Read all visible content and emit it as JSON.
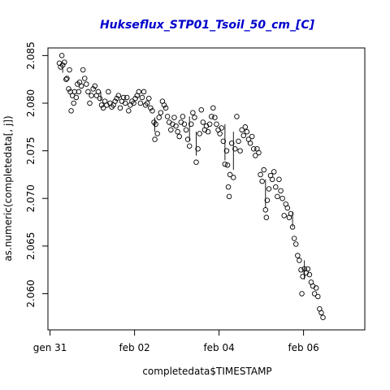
{
  "chart_data": {
    "type": "scatter",
    "title": "Hukseflux_STP01_Tsoil_50_cm_[C]",
    "xlabel": "completedata$TIMESTAMP",
    "ylabel": "as.numeric(completedata[, j])",
    "x_unit": "days",
    "xlim": [
      -0.05,
      7.45
    ],
    "ylim": [
      2.0562,
      2.0858
    ],
    "x_ticks": [
      {
        "value": 0,
        "label": "gen 31"
      },
      {
        "value": 2,
        "label": "feb 02"
      },
      {
        "value": 4,
        "label": "feb 04"
      },
      {
        "value": 6,
        "label": "feb 06"
      }
    ],
    "y_ticks": [
      {
        "value": 2.06,
        "label": "2.060"
      },
      {
        "value": 2.065,
        "label": "2.065"
      },
      {
        "value": 2.07,
        "label": "2.070"
      },
      {
        "value": 2.075,
        "label": "2.075"
      },
      {
        "value": 2.08,
        "label": "2.080"
      },
      {
        "value": 2.085,
        "label": "2.085"
      }
    ],
    "grid": false,
    "points": [
      [
        0.22,
        2.0842
      ],
      [
        0.25,
        2.0838
      ],
      [
        0.28,
        2.085
      ],
      [
        0.3,
        2.084
      ],
      [
        0.34,
        2.0843
      ],
      [
        0.38,
        2.0825
      ],
      [
        0.4,
        2.0826
      ],
      [
        0.44,
        2.0815
      ],
      [
        0.46,
        2.0835
      ],
      [
        0.48,
        2.0812
      ],
      [
        0.5,
        2.0792
      ],
      [
        0.53,
        2.0808
      ],
      [
        0.56,
        2.08
      ],
      [
        0.58,
        2.0812
      ],
      [
        0.62,
        2.0806
      ],
      [
        0.65,
        2.082
      ],
      [
        0.68,
        2.0812
      ],
      [
        0.7,
        2.0822
      ],
      [
        0.74,
        2.0818
      ],
      [
        0.78,
        2.0835
      ],
      [
        0.82,
        2.0826
      ],
      [
        0.86,
        2.082
      ],
      [
        0.9,
        2.0812
      ],
      [
        0.94,
        2.08
      ],
      [
        0.98,
        2.0808
      ],
      [
        1.02,
        2.0815
      ],
      [
        1.06,
        2.0818
      ],
      [
        1.1,
        2.0808
      ],
      [
        1.14,
        2.0812
      ],
      [
        1.18,
        2.0805
      ],
      [
        1.22,
        2.0798
      ],
      [
        1.26,
        2.0795
      ],
      [
        1.3,
        2.0802
      ],
      [
        1.34,
        2.0798
      ],
      [
        1.38,
        2.0812
      ],
      [
        1.42,
        2.08
      ],
      [
        1.46,
        2.0796
      ],
      [
        1.5,
        2.0798
      ],
      [
        1.54,
        2.0802
      ],
      [
        1.58,
        2.0805
      ],
      [
        1.62,
        2.0808
      ],
      [
        1.66,
        2.0795
      ],
      [
        1.7,
        2.0802
      ],
      [
        1.74,
        2.0806
      ],
      [
        1.78,
        2.08
      ],
      [
        1.82,
        2.0806
      ],
      [
        1.86,
        2.0792
      ],
      [
        1.9,
        2.0798
      ],
      [
        1.94,
        2.0802
      ],
      [
        1.98,
        2.08
      ],
      [
        2.02,
        2.0805
      ],
      [
        2.06,
        2.0808
      ],
      [
        2.1,
        2.0812
      ],
      [
        2.14,
        2.08
      ],
      [
        2.18,
        2.0806
      ],
      [
        2.22,
        2.0812
      ],
      [
        2.26,
        2.0798
      ],
      [
        2.3,
        2.08
      ],
      [
        2.34,
        2.0805
      ],
      [
        2.38,
        2.0795
      ],
      [
        2.42,
        2.0792
      ],
      [
        2.46,
        2.078
      ],
      [
        2.48,
        2.0762
      ],
      [
        2.5,
        2.0778
      ],
      [
        2.54,
        2.0768
      ],
      [
        2.58,
        2.0785
      ],
      [
        2.62,
        2.079
      ],
      [
        2.66,
        2.0802
      ],
      [
        2.7,
        2.0798
      ],
      [
        2.74,
        2.0795
      ],
      [
        2.78,
        2.0786
      ],
      [
        2.82,
        2.078
      ],
      [
        2.86,
        2.0772
      ],
      [
        2.9,
        2.0778
      ],
      [
        2.94,
        2.0785
      ],
      [
        2.98,
        2.0776
      ],
      [
        3.02,
        2.077
      ],
      [
        3.06,
        2.0765
      ],
      [
        3.1,
        2.078
      ],
      [
        3.14,
        2.0786
      ],
      [
        3.18,
        2.0778
      ],
      [
        3.22,
        2.0772
      ],
      [
        3.26,
        2.0762
      ],
      [
        3.3,
        2.0755
      ],
      [
        3.34,
        2.0778
      ],
      [
        3.38,
        2.079
      ],
      [
        3.42,
        2.0785
      ],
      [
        3.46,
        2.0738
      ],
      [
        3.5,
        2.0752
      ],
      [
        3.54,
        2.0768
      ],
      [
        3.58,
        2.0793
      ],
      [
        3.62,
        2.078
      ],
      [
        3.66,
        2.0772
      ],
      [
        3.7,
        2.0776
      ],
      [
        3.74,
        2.077
      ],
      [
        3.78,
        2.0778
      ],
      [
        3.82,
        2.0786
      ],
      [
        3.86,
        2.0795
      ],
      [
        3.9,
        2.0785
      ],
      [
        3.94,
        2.0778
      ],
      [
        3.98,
        2.0772
      ],
      [
        4.02,
        2.0768
      ],
      [
        4.06,
        2.0774
      ],
      [
        4.1,
        2.076
      ],
      [
        4.14,
        2.0736
      ],
      [
        4.18,
        2.075
      ],
      [
        4.2,
        2.0735
      ],
      [
        4.22,
        2.0712
      ],
      [
        4.24,
        2.0702
      ],
      [
        4.26,
        2.0725
      ],
      [
        4.3,
        2.0758
      ],
      [
        4.34,
        2.0722
      ],
      [
        4.38,
        2.0752
      ],
      [
        4.42,
        2.0786
      ],
      [
        4.46,
        2.076
      ],
      [
        4.5,
        2.075
      ],
      [
        4.54,
        2.0772
      ],
      [
        4.58,
        2.0766
      ],
      [
        4.62,
        2.0775
      ],
      [
        4.66,
        2.077
      ],
      [
        4.7,
        2.0762
      ],
      [
        4.74,
        2.0758
      ],
      [
        4.78,
        2.0765
      ],
      [
        4.82,
        2.0752
      ],
      [
        4.86,
        2.0745
      ],
      [
        4.9,
        2.0752
      ],
      [
        4.94,
        2.0748
      ],
      [
        4.98,
        2.0725
      ],
      [
        5.02,
        2.0718
      ],
      [
        5.06,
        2.073
      ],
      [
        5.1,
        2.0688
      ],
      [
        5.12,
        2.068
      ],
      [
        5.14,
        2.0698
      ],
      [
        5.18,
        2.071
      ],
      [
        5.22,
        2.0724
      ],
      [
        5.26,
        2.072
      ],
      [
        5.3,
        2.0728
      ],
      [
        5.34,
        2.0712
      ],
      [
        5.38,
        2.0702
      ],
      [
        5.42,
        2.072
      ],
      [
        5.46,
        2.0708
      ],
      [
        5.5,
        2.07
      ],
      [
        5.54,
        2.0682
      ],
      [
        5.58,
        2.0694
      ],
      [
        5.62,
        2.069
      ],
      [
        5.66,
        2.068
      ],
      [
        5.7,
        2.0684
      ],
      [
        5.74,
        2.067
      ],
      [
        5.78,
        2.0658
      ],
      [
        5.82,
        2.0652
      ],
      [
        5.86,
        2.064
      ],
      [
        5.9,
        2.0635
      ],
      [
        5.94,
        2.0625
      ],
      [
        5.96,
        2.06
      ],
      [
        5.98,
        2.0618
      ],
      [
        6.02,
        2.0626
      ],
      [
        6.06,
        2.0622
      ],
      [
        6.1,
        2.0626
      ],
      [
        6.14,
        2.062
      ],
      [
        6.18,
        2.0612
      ],
      [
        6.22,
        2.0608
      ],
      [
        6.26,
        2.06
      ],
      [
        6.3,
        2.0606
      ],
      [
        6.34,
        2.0597
      ],
      [
        6.38,
        2.0584
      ],
      [
        6.42,
        2.058
      ],
      [
        6.46,
        2.0575
      ]
    ],
    "segments": [
      [
        [
          0.3,
          2.084
        ],
        [
          0.3,
          2.0832
        ]
      ],
      [
        [
          1.2,
          2.0812
        ],
        [
          1.2,
          2.0802
        ]
      ],
      [
        [
          2.48,
          2.0785
        ],
        [
          2.48,
          2.077
        ]
      ],
      [
        [
          3.3,
          2.0786
        ],
        [
          3.3,
          2.076
        ]
      ],
      [
        [
          3.46,
          2.077
        ],
        [
          3.46,
          2.0745
        ]
      ],
      [
        [
          4.14,
          2.0778
        ],
        [
          4.14,
          2.074
        ]
      ],
      [
        [
          4.34,
          2.077
        ],
        [
          4.34,
          2.073
        ]
      ],
      [
        [
          5.1,
          2.072
        ],
        [
          5.1,
          2.069
        ]
      ],
      [
        [
          5.74,
          2.0686
        ],
        [
          5.74,
          2.067
        ]
      ],
      [
        [
          6.02,
          2.0635
        ],
        [
          6.02,
          2.0615
        ]
      ]
    ]
  }
}
